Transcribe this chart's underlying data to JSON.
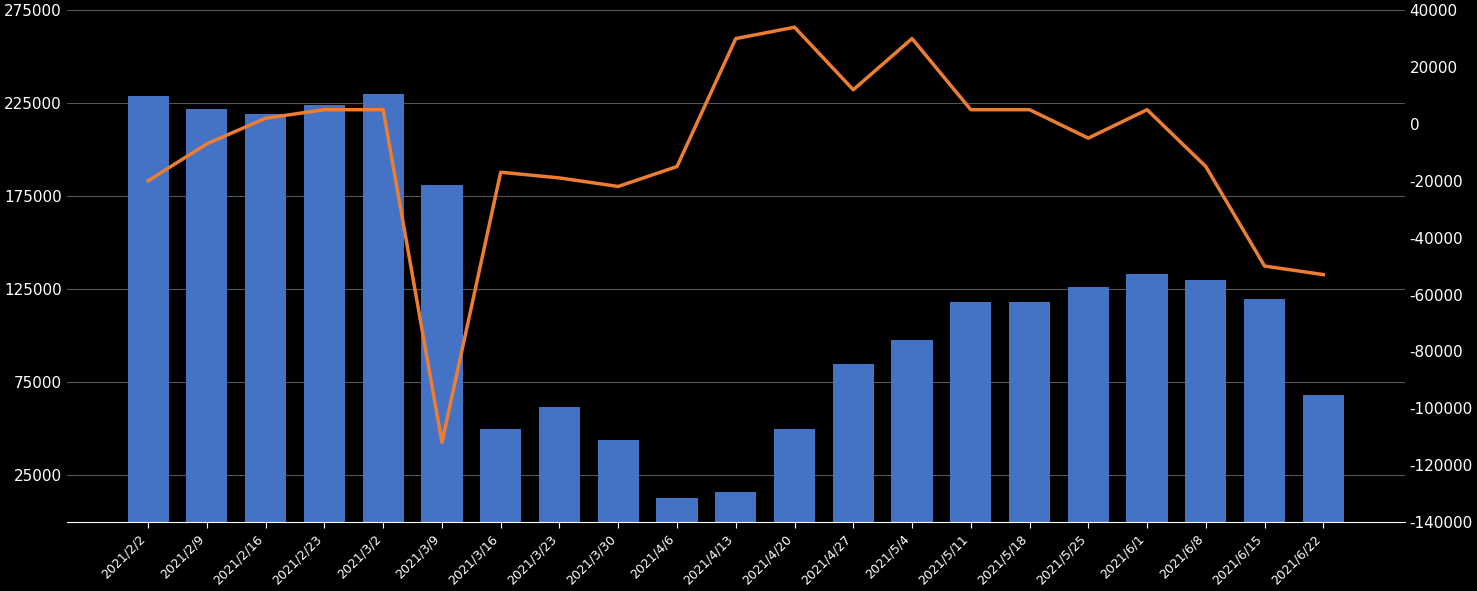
{
  "categories": [
    "2021/2/2",
    "2021/2/9",
    "2021/2/16",
    "2021/2/23",
    "2021/3/2",
    "2021/3/9",
    "2021/3/16",
    "2021/3/23",
    "2021/3/30",
    "2021/4/6",
    "2021/4/13",
    "2021/4/20",
    "2021/4/27",
    "2021/5/4",
    "2021/5/11",
    "2021/5/18",
    "2021/5/25",
    "2021/6/1",
    "2021/6/8",
    "2021/6/15",
    "2021/6/22"
  ],
  "bar_values": [
    229000,
    222000,
    219000,
    224000,
    230000,
    181000,
    50000,
    62000,
    44000,
    13000,
    16000,
    50000,
    85000,
    98000,
    118000,
    118000,
    126000,
    133000,
    130000,
    120000,
    68000
  ],
  "line_values": [
    -20000,
    -7000,
    2000,
    5000,
    5000,
    -112000,
    -17000,
    -19000,
    -22000,
    -15000,
    30000,
    34000,
    12000,
    30000,
    5000,
    5000,
    -5000,
    5000,
    -15000,
    -50000,
    -53000
  ],
  "bar_color": "#4472C4",
  "line_color": "#ED7D31",
  "background_color": "#000000",
  "text_color": "#FFFFFF",
  "grid_color": "#555555",
  "ylim_left": [
    0,
    275000
  ],
  "ylim_right": [
    -140000,
    40000
  ],
  "yticks_left": [
    25000,
    75000,
    125000,
    175000,
    225000,
    275000
  ],
  "yticks_right": [
    -140000,
    -120000,
    -100000,
    -80000,
    -60000,
    -40000,
    -20000,
    0,
    20000,
    40000
  ],
  "figsize": [
    14.77,
    5.91
  ],
  "dpi": 100
}
